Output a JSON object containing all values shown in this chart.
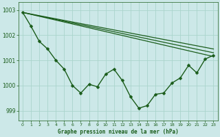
{
  "title": "Graphe pression niveau de la mer (hPa)",
  "bg_color": "#cce8e8",
  "grid_color": "#aad4cc",
  "line_color": "#1a5c1a",
  "xlim": [
    -0.5,
    23.5
  ],
  "ylim": [
    998.6,
    1003.3
  ],
  "yticks": [
    999,
    1000,
    1001,
    1002,
    1003
  ],
  "xticks": [
    0,
    1,
    2,
    3,
    4,
    5,
    6,
    7,
    8,
    9,
    10,
    11,
    12,
    13,
    14,
    15,
    16,
    17,
    18,
    19,
    20,
    21,
    22,
    23
  ],
  "main_x": [
    0,
    1,
    2,
    3,
    4,
    5,
    6,
    7,
    8,
    9,
    10,
    11,
    12,
    13,
    14,
    15,
    16,
    17,
    18,
    19,
    20,
    21,
    22,
    23
  ],
  "main_y": [
    1002.9,
    1002.35,
    1001.75,
    1001.45,
    1001.0,
    1000.65,
    1000.0,
    999.7,
    1000.05,
    999.95,
    1000.45,
    1000.65,
    1000.2,
    999.55,
    999.1,
    999.2,
    999.65,
    999.7,
    1000.1,
    1000.3,
    1000.8,
    1000.5,
    1001.05,
    1001.2
  ],
  "trend_lines": [
    {
      "x": [
        0,
        23
      ],
      "y": [
        1002.9,
        1001.15
      ]
    },
    {
      "x": [
        0,
        23
      ],
      "y": [
        1002.9,
        1001.3
      ]
    },
    {
      "x": [
        0,
        23
      ],
      "y": [
        1002.9,
        1001.45
      ]
    }
  ]
}
